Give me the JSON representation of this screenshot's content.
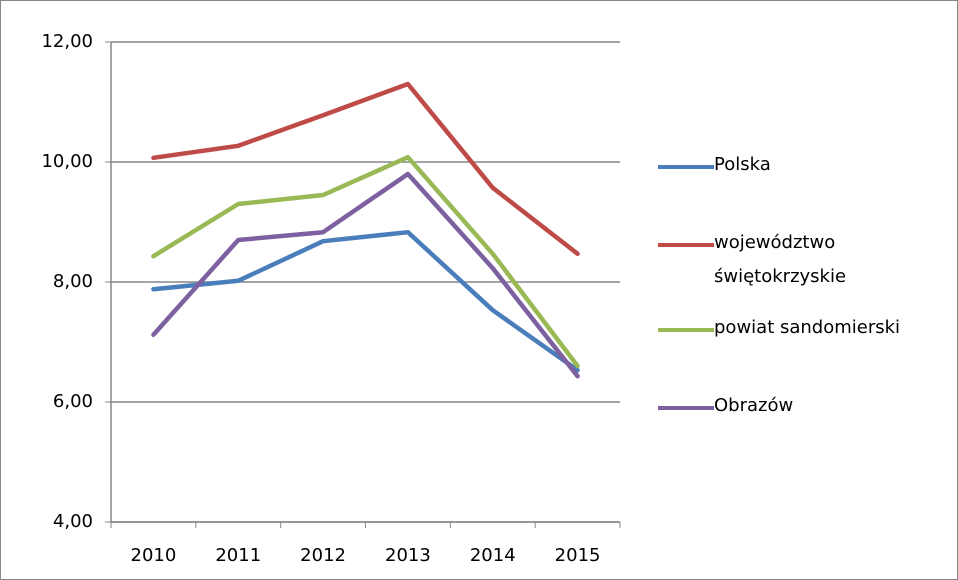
{
  "chart_data": {
    "type": "line",
    "categories": [
      "2010",
      "2011",
      "2012",
      "2013",
      "2014",
      "2015"
    ],
    "series": [
      {
        "name": "Polska",
        "color": "#4a7ebb",
        "values": [
          7.88,
          8.02,
          8.68,
          8.83,
          7.53,
          6.53
        ]
      },
      {
        "name": "województwo świętokrzyskie",
        "color": "#be4b48",
        "values": [
          10.07,
          10.27,
          10.78,
          11.3,
          9.57,
          8.47
        ]
      },
      {
        "name": "powiat sandomierski",
        "color": "#98b954",
        "values": [
          8.43,
          9.3,
          9.45,
          10.08,
          8.47,
          6.6
        ]
      },
      {
        "name": "Obrazów",
        "color": "#7d60a0",
        "values": [
          7.12,
          8.7,
          8.83,
          9.8,
          8.23,
          6.43
        ]
      }
    ],
    "ylim": [
      4,
      12
    ],
    "yticks": [
      {
        "value": 4,
        "label": "4,00"
      },
      {
        "value": 6,
        "label": "6,00"
      },
      {
        "value": 8,
        "label": "8,00"
      },
      {
        "value": 10,
        "label": "10,00"
      },
      {
        "value": 12,
        "label": "12,00"
      }
    ],
    "grid": true,
    "legend": "right"
  }
}
